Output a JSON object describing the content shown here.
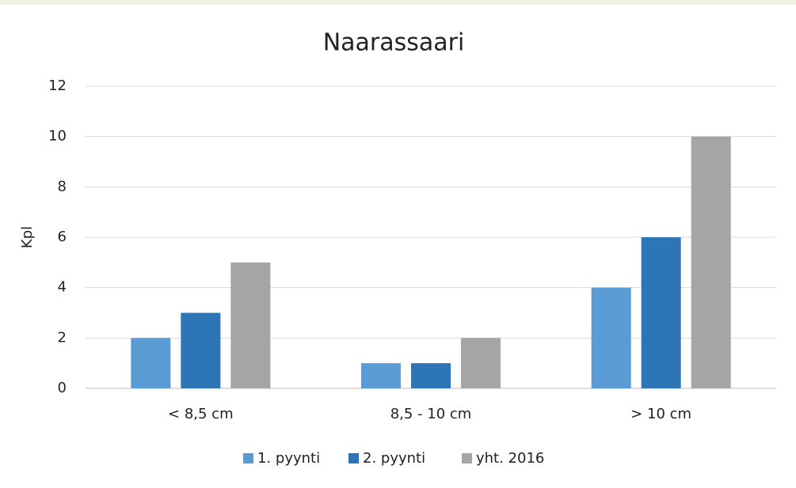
{
  "chart_data": {
    "type": "bar",
    "title": "Naarassaari",
    "ylabel": "Kpl",
    "categories": [
      "< 8,5 cm",
      "8,5 - 10 cm",
      "> 10 cm"
    ],
    "series": [
      {
        "name": "1. pyynti",
        "color": "#5b9bd5",
        "values": [
          2,
          1,
          4
        ]
      },
      {
        "name": "2. pyynti",
        "color": "#2e75b6",
        "values": [
          3,
          1,
          6
        ]
      },
      {
        "name": "yht. 2016",
        "color": "#a5a5a5",
        "values": [
          5,
          2,
          10
        ]
      }
    ],
    "ylim": [
      0,
      12
    ],
    "yticks": [
      0,
      2,
      4,
      6,
      8,
      10,
      12
    ],
    "grid": true,
    "legend": "bottom"
  }
}
